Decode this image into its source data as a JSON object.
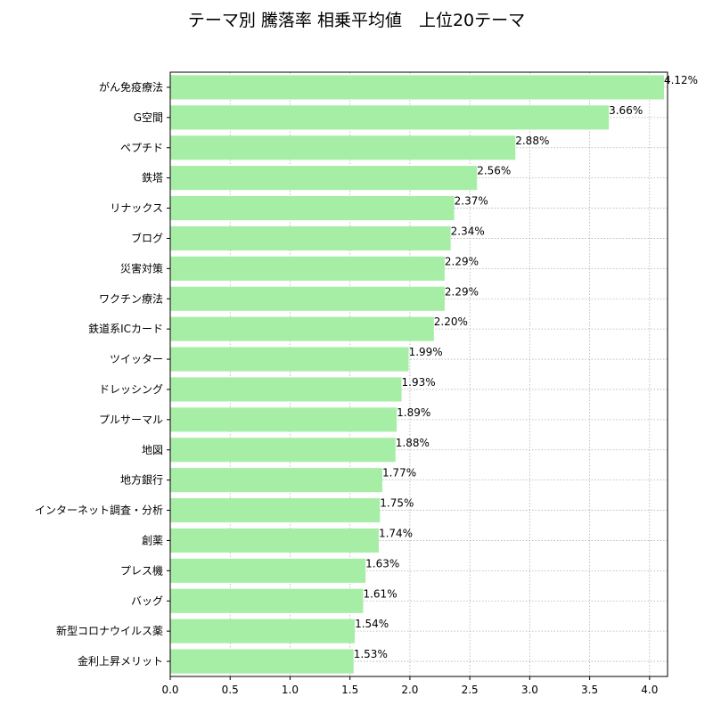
{
  "chart_data": {
    "type": "bar",
    "orientation": "horizontal",
    "title": "テーマ別 騰落率 相乗平均値　上位20テーマ",
    "xlabel": "",
    "ylabel": "",
    "xlim": [
      0,
      4.15
    ],
    "xticks": [
      "0.0",
      "0.5",
      "1.0",
      "1.5",
      "2.0",
      "2.5",
      "3.0",
      "3.5",
      "4.0"
    ],
    "grid": true,
    "bar_color": "#a6eea6",
    "categories": [
      "がん免疫療法",
      "G空間",
      "ペプチド",
      "鉄塔",
      "リナックス",
      "ブログ",
      "災害対策",
      "ワクチン療法",
      "鉄道系ICカード",
      "ツイッター",
      "ドレッシング",
      "プルサーマル",
      "地図",
      "地方銀行",
      "インターネット調査・分析",
      "創薬",
      "プレス機",
      "バッグ",
      "新型コロナウイルス薬",
      "金利上昇メリット"
    ],
    "values": [
      4.12,
      3.66,
      2.88,
      2.56,
      2.37,
      2.34,
      2.29,
      2.29,
      2.2,
      1.99,
      1.93,
      1.89,
      1.88,
      1.77,
      1.75,
      1.74,
      1.63,
      1.61,
      1.54,
      1.53
    ],
    "value_labels": [
      "4.12%",
      "3.66%",
      "2.88%",
      "2.56%",
      "2.37%",
      "2.34%",
      "2.29%",
      "2.29%",
      "2.20%",
      "1.99%",
      "1.93%",
      "1.89%",
      "1.88%",
      "1.77%",
      "1.75%",
      "1.74%",
      "1.63%",
      "1.61%",
      "1.54%",
      "1.53%"
    ]
  }
}
